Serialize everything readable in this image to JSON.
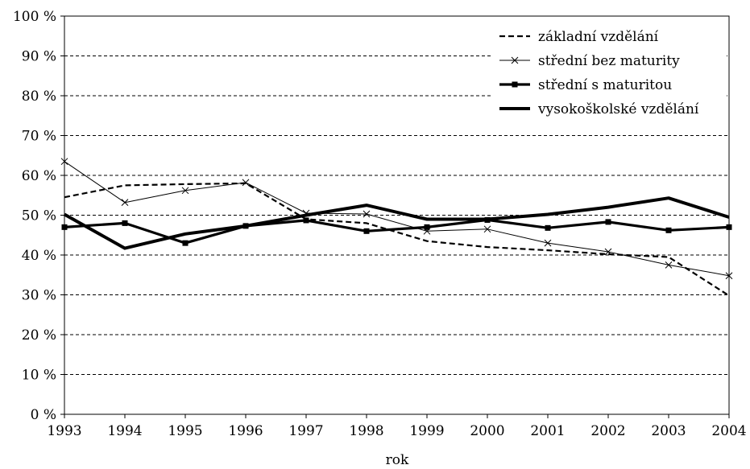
{
  "chart_data": {
    "type": "line",
    "title": "",
    "xlabel": "rok",
    "ylabel": "",
    "x": [
      "1993",
      "1994",
      "1995",
      "1996",
      "1997",
      "1998",
      "1999",
      "2000",
      "2001",
      "2002",
      "2003",
      "2004"
    ],
    "ylim": [
      0,
      100
    ],
    "yticks": [
      "0 %",
      "10 %",
      "20 %",
      "30 %",
      "40 %",
      "50 %",
      "60 %",
      "70 %",
      "80 %",
      "90 %",
      "100 %"
    ],
    "grid": true,
    "legend_position": "top-right",
    "series": [
      {
        "name": "základní vzdělání",
        "style": "dashed",
        "values": [
          54.5,
          57.5,
          57.8,
          58.0,
          49.0,
          48.0,
          43.5,
          42.0,
          41.2,
          40.2,
          39.5,
          29.8
        ]
      },
      {
        "name": "střední bez maturity",
        "style": "thin-x-marker",
        "values": [
          63.5,
          53.2,
          56.2,
          58.2,
          50.5,
          50.3,
          46.0,
          46.5,
          43.0,
          40.8,
          37.5,
          34.8
        ]
      },
      {
        "name": "střední s maturitou",
        "style": "square-marker",
        "values": [
          47.0,
          48.0,
          43.0,
          47.3,
          48.7,
          46.0,
          47.0,
          48.8,
          46.8,
          48.3,
          46.2,
          47.0
        ]
      },
      {
        "name": "vysokoškolské vzdělání",
        "style": "thick",
        "values": [
          50.2,
          41.7,
          45.3,
          47.3,
          50.0,
          52.5,
          49.0,
          49.0,
          50.2,
          52.0,
          54.3,
          49.5
        ]
      }
    ]
  }
}
